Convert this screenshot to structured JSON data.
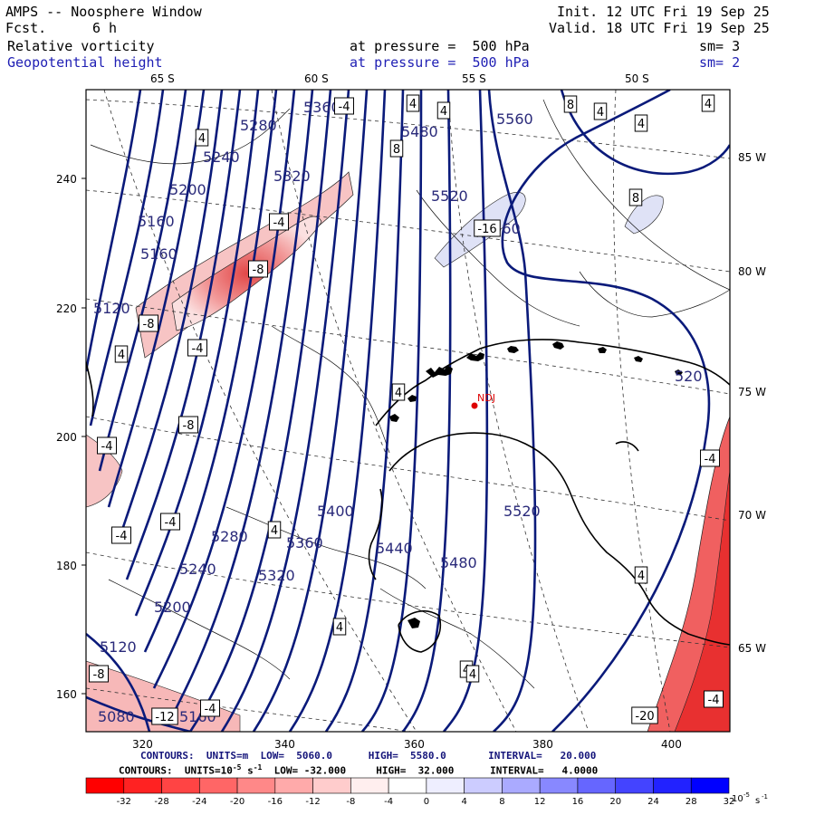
{
  "header": {
    "title": "AMPS -- Noosphere Window",
    "fcst_label": "Fcst.",
    "fcst_value": "6 h",
    "init": "Init. 12 UTC Fri 19 Sep 25",
    "valid": "Valid. 18 UTC Fri 19 Sep 25",
    "field1": "Relative vorticity",
    "field1_level": "at pressure =  500 hPa",
    "field1_sm": "sm= 3",
    "field2": "Geopotential height",
    "field2_level": "at pressure =  500 hPa",
    "field2_sm": "sm= 2"
  },
  "map": {
    "lat_labels_top": [
      "65 S",
      "60 S",
      "55 S",
      "50 S"
    ],
    "lon_labels_right": [
      "85 W",
      "80 W",
      "75 W",
      "70 W",
      "65 W"
    ],
    "y_ticks": [
      "240",
      "220",
      "200",
      "180",
      "160"
    ],
    "x_ticks": [
      "320",
      "340",
      "360",
      "380",
      "400"
    ],
    "height_labels": [
      {
        "text": "5280"
      },
      {
        "text": "5360"
      },
      {
        "text": "5480"
      },
      {
        "text": "5560"
      },
      {
        "text": "5240"
      },
      {
        "text": "5320"
      },
      {
        "text": "5200"
      },
      {
        "text": "5520"
      },
      {
        "text": "5160"
      },
      {
        "text": "5560"
      },
      {
        "text": "5160"
      },
      {
        "text": "5120"
      },
      {
        "text": "5400"
      },
      {
        "text": "5520"
      },
      {
        "text": "5280"
      },
      {
        "text": "5360"
      },
      {
        "text": "5440"
      },
      {
        "text": "5320"
      },
      {
        "text": "5240"
      },
      {
        "text": "5480"
      },
      {
        "text": "5200"
      },
      {
        "text": "5120"
      },
      {
        "text": "5080"
      },
      {
        "text": "5160"
      },
      {
        "text": "520"
      }
    ],
    "vort_labels": [
      {
        "text": "-4"
      },
      {
        "text": "4"
      },
      {
        "text": "4"
      },
      {
        "text": "8"
      },
      {
        "text": "4"
      },
      {
        "text": "4"
      },
      {
        "text": "4"
      },
      {
        "text": "4"
      },
      {
        "text": "8"
      },
      {
        "text": "-4"
      },
      {
        "text": "8"
      },
      {
        "text": "-16"
      },
      {
        "text": "-8"
      },
      {
        "text": "-8"
      },
      {
        "text": "-4"
      },
      {
        "text": "4"
      },
      {
        "text": "4"
      },
      {
        "text": "-8"
      },
      {
        "text": "-4"
      },
      {
        "text": "-4"
      },
      {
        "text": "-4"
      },
      {
        "text": "4"
      },
      {
        "text": "4"
      },
      {
        "text": "4"
      },
      {
        "text": "-4"
      },
      {
        "text": "4"
      },
      {
        "text": "-8"
      },
      {
        "text": "-12"
      },
      {
        "text": "-4"
      },
      {
        "text": "-20"
      },
      {
        "text": "-4"
      },
      {
        "text": "4"
      }
    ],
    "station_label": "NDJ"
  },
  "contour_notes": {
    "line1_prefix": "CONTOURS:",
    "line1_units": "UNITS=m",
    "line1_low": "LOW=  5060.0",
    "line1_high": "HIGH=  5580.0",
    "line1_interval": "INTERVAL=   20.000",
    "line2_prefix": "CONTOURS:",
    "line2_units": "UNITS=10",
    "line2_units_exp": "-5",
    "line2_units_s": "s",
    "line2_units_s_exp": "-1",
    "line2_low": "LOW= -32.000",
    "line2_high": "HIGH=  32.000",
    "line2_interval": "INTERVAL=   4.0000"
  },
  "colorbar": {
    "labels": [
      "-32",
      "-28",
      "-24",
      "-20",
      "-16",
      "-12",
      "-8",
      "-4",
      "0",
      "4",
      "8",
      "12",
      "16",
      "20",
      "24",
      "28",
      "32"
    ],
    "units": "10",
    "units_exp": "-5",
    "units_s": "s",
    "units_s_exp": "-1",
    "colors": [
      "#ff0000",
      "#ff2222",
      "#ff4444",
      "#ff6666",
      "#ff8888",
      "#ffaaaa",
      "#ffcccc",
      "#ffeeee",
      "#ffffff",
      "#eeeeff",
      "#ccccff",
      "#aaaaff",
      "#8888ff",
      "#6666ff",
      "#4444ff",
      "#2222ff",
      "#0000ff"
    ]
  },
  "colors": {
    "height_contour": "#0a1a7a",
    "vort_neg_fill": "#f08080",
    "vort_pos_fill": "#d8dcf4",
    "station": "#dd0000"
  }
}
